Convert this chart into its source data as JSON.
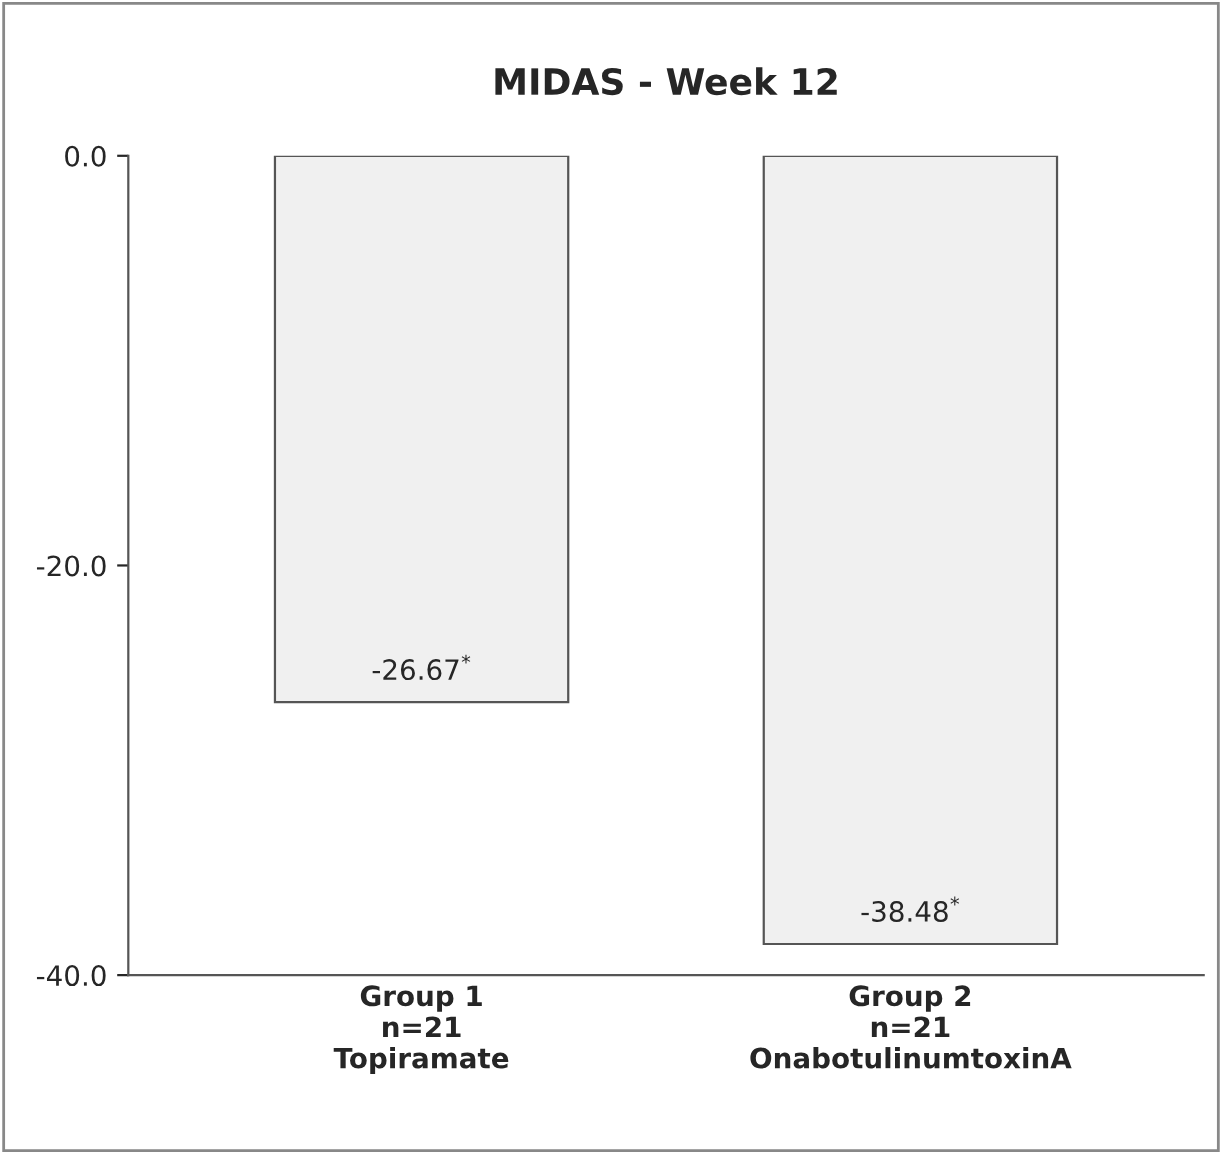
{
  "chart_data": {
    "type": "bar",
    "title": "MIDAS - Week 12",
    "categories": [
      "Group 1\nn=21\nTopiramate",
      "Group 2\nn=21\nOnabotulinumtoxinA"
    ],
    "values": [
      -26.67,
      -38.48
    ],
    "color": "#f0f0f0",
    "value_labels": [
      "-26.67$^{*}$",
      "-38.48$^{*}$"
    ],
    "ylim": [
      -40,
      0
    ],
    "yticks": [
      {
        "value": 0,
        "label": "0.0"
      },
      {
        "value": -20,
        "label": "-20.0"
      },
      {
        "value": -40,
        "label": "-40.0"
      }
    ],
    "grid": false
  }
}
